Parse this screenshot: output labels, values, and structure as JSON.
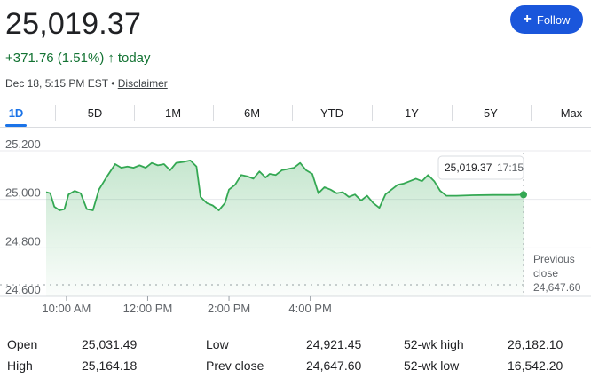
{
  "quote": {
    "price": "25,019.37",
    "change": "+371.76 (1.51%)",
    "change_arrow": "↑",
    "change_period": "today",
    "timestamp": "Dec 18, 5:15 PM EST",
    "separator": "•",
    "disclaimer": "Disclaimer",
    "positive_color": "#137333"
  },
  "follow": {
    "icon": "plus-icon",
    "label": "Follow"
  },
  "tabs": [
    {
      "label": "1D",
      "active": true
    },
    {
      "label": "5D"
    },
    {
      "label": "1M"
    },
    {
      "label": "6M"
    },
    {
      "label": "YTD"
    },
    {
      "label": "1Y"
    },
    {
      "label": "5Y"
    },
    {
      "label": "Max"
    }
  ],
  "chart_data": {
    "type": "area",
    "y_ticks": [
      "25,200",
      "25,000",
      "24,800",
      "24,600"
    ],
    "x_ticks": [
      "10:00 AM",
      "12:00 PM",
      "2:00 PM",
      "4:00 PM"
    ],
    "ylim": [
      24600,
      25200
    ],
    "line_color": "#34a853",
    "tooltip": {
      "value": "25,019.37",
      "time": "17:15"
    },
    "previous_close": {
      "label_line1": "Previous",
      "label_line2": "close",
      "value": "24,647.60",
      "y": 24647.6
    },
    "series": [
      {
        "values": [
          [
            9.5,
            25030
          ],
          [
            9.6,
            25025
          ],
          [
            9.7,
            24970
          ],
          [
            9.83,
            24955
          ],
          [
            9.95,
            24960
          ],
          [
            10.05,
            25020
          ],
          [
            10.2,
            25035
          ],
          [
            10.35,
            25025
          ],
          [
            10.5,
            24960
          ],
          [
            10.65,
            24955
          ],
          [
            10.8,
            25040
          ],
          [
            11.0,
            25095
          ],
          [
            11.2,
            25145
          ],
          [
            11.35,
            25130
          ],
          [
            11.5,
            25135
          ],
          [
            11.65,
            25130
          ],
          [
            11.8,
            25140
          ],
          [
            11.95,
            25130
          ],
          [
            12.1,
            25150
          ],
          [
            12.25,
            25140
          ],
          [
            12.4,
            25145
          ],
          [
            12.55,
            25120
          ],
          [
            12.7,
            25150
          ],
          [
            12.9,
            25155
          ],
          [
            13.05,
            25160
          ],
          [
            13.2,
            25135
          ],
          [
            13.3,
            25010
          ],
          [
            13.45,
            24985
          ],
          [
            13.6,
            24975
          ],
          [
            13.75,
            24955
          ],
          [
            13.9,
            24985
          ],
          [
            14.0,
            25040
          ],
          [
            14.15,
            25060
          ],
          [
            14.3,
            25100
          ],
          [
            14.45,
            25095
          ],
          [
            14.6,
            25085
          ],
          [
            14.75,
            25115
          ],
          [
            14.9,
            25090
          ],
          [
            15.0,
            25105
          ],
          [
            15.15,
            25100
          ],
          [
            15.3,
            25120
          ],
          [
            15.45,
            25125
          ],
          [
            15.6,
            25130
          ],
          [
            15.75,
            25150
          ],
          [
            15.9,
            25120
          ],
          [
            16.05,
            25105
          ],
          [
            16.2,
            25025
          ],
          [
            16.35,
            25050
          ],
          [
            16.5,
            25040
          ],
          [
            16.65,
            25025
          ],
          [
            16.8,
            25030
          ],
          [
            16.95,
            25010
          ],
          [
            17.1,
            25020
          ],
          [
            17.25,
            24995
          ],
          [
            17.4,
            25015
          ],
          [
            17.55,
            24985
          ],
          [
            17.7,
            24965
          ],
          [
            17.85,
            25020
          ],
          [
            18.0,
            25040
          ],
          [
            18.15,
            25060
          ],
          [
            18.3,
            25065
          ],
          [
            18.45,
            25075
          ],
          [
            18.6,
            25085
          ],
          [
            18.75,
            25075
          ],
          [
            18.9,
            25100
          ],
          [
            19.05,
            25075
          ],
          [
            19.2,
            25035
          ],
          [
            19.35,
            25015
          ],
          [
            19.6,
            25015
          ],
          [
            20.0,
            25017
          ],
          [
            20.5,
            25018
          ],
          [
            21.0,
            25018
          ],
          [
            21.25,
            25019.37
          ]
        ]
      }
    ]
  },
  "stats": [
    {
      "label": "Open",
      "value": "25,031.49"
    },
    {
      "label": "High",
      "value": "25,164.18"
    },
    {
      "label": "Low",
      "value": "24,921.45"
    },
    {
      "label": "Prev close",
      "value": "24,647.60"
    },
    {
      "label": "52-wk high",
      "value": "26,182.10"
    },
    {
      "label": "52-wk low",
      "value": "16,542.20"
    }
  ]
}
